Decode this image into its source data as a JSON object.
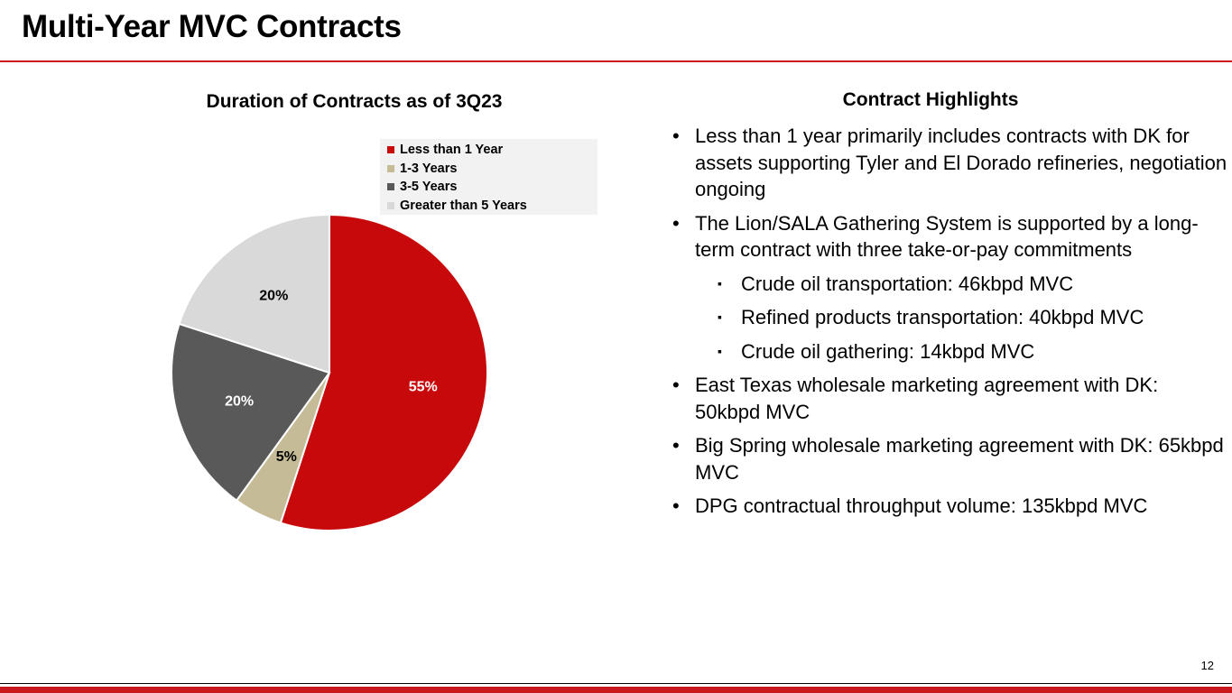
{
  "slide": {
    "title": "Multi-Year MVC Contracts",
    "page_number": "12",
    "accent_color": "#c9191f"
  },
  "chart_data": {
    "type": "pie",
    "title": "Duration of Contracts as of 3Q23",
    "legend_position": "top-right",
    "categories": [
      "Less than 1 Year",
      "1-3 Years",
      "3-5 Years",
      "Greater than 5 Years"
    ],
    "values": [
      55,
      5,
      20,
      20
    ],
    "labels": [
      "55%",
      "5%",
      "20%",
      "20%"
    ],
    "colors": [
      "#c8090b",
      "#c5bc97",
      "#595959",
      "#d9d9d9"
    ],
    "label_colors": [
      "#ffffff",
      "#000000",
      "#ffffff",
      "#000000"
    ]
  },
  "highlights": {
    "title": "Contract Highlights",
    "bullet_symbol": "•",
    "sub_symbol": "▪",
    "items": [
      {
        "text": "Less than 1 year primarily includes contracts with DK for assets supporting Tyler and El Dorado refineries, negotiation ongoing"
      },
      {
        "text": "The Lion/SALA Gathering System is supported by a long-term contract with three take-or-pay commitments"
      },
      {
        "text": "Crude oil transportation: 46kbpd MVC"
      },
      {
        "text": "Refined products transportation: 40kbpd MVC"
      },
      {
        "text": "Crude oil gathering: 14kbpd MVC"
      },
      {
        "text": "East Texas wholesale marketing agreement with DK: 50kbpd MVC"
      },
      {
        "text": "Big Spring wholesale marketing agreement with DK: 65kbpd MVC"
      },
      {
        "text": "DPG contractual throughput volume: 135kbpd MVC"
      }
    ]
  }
}
